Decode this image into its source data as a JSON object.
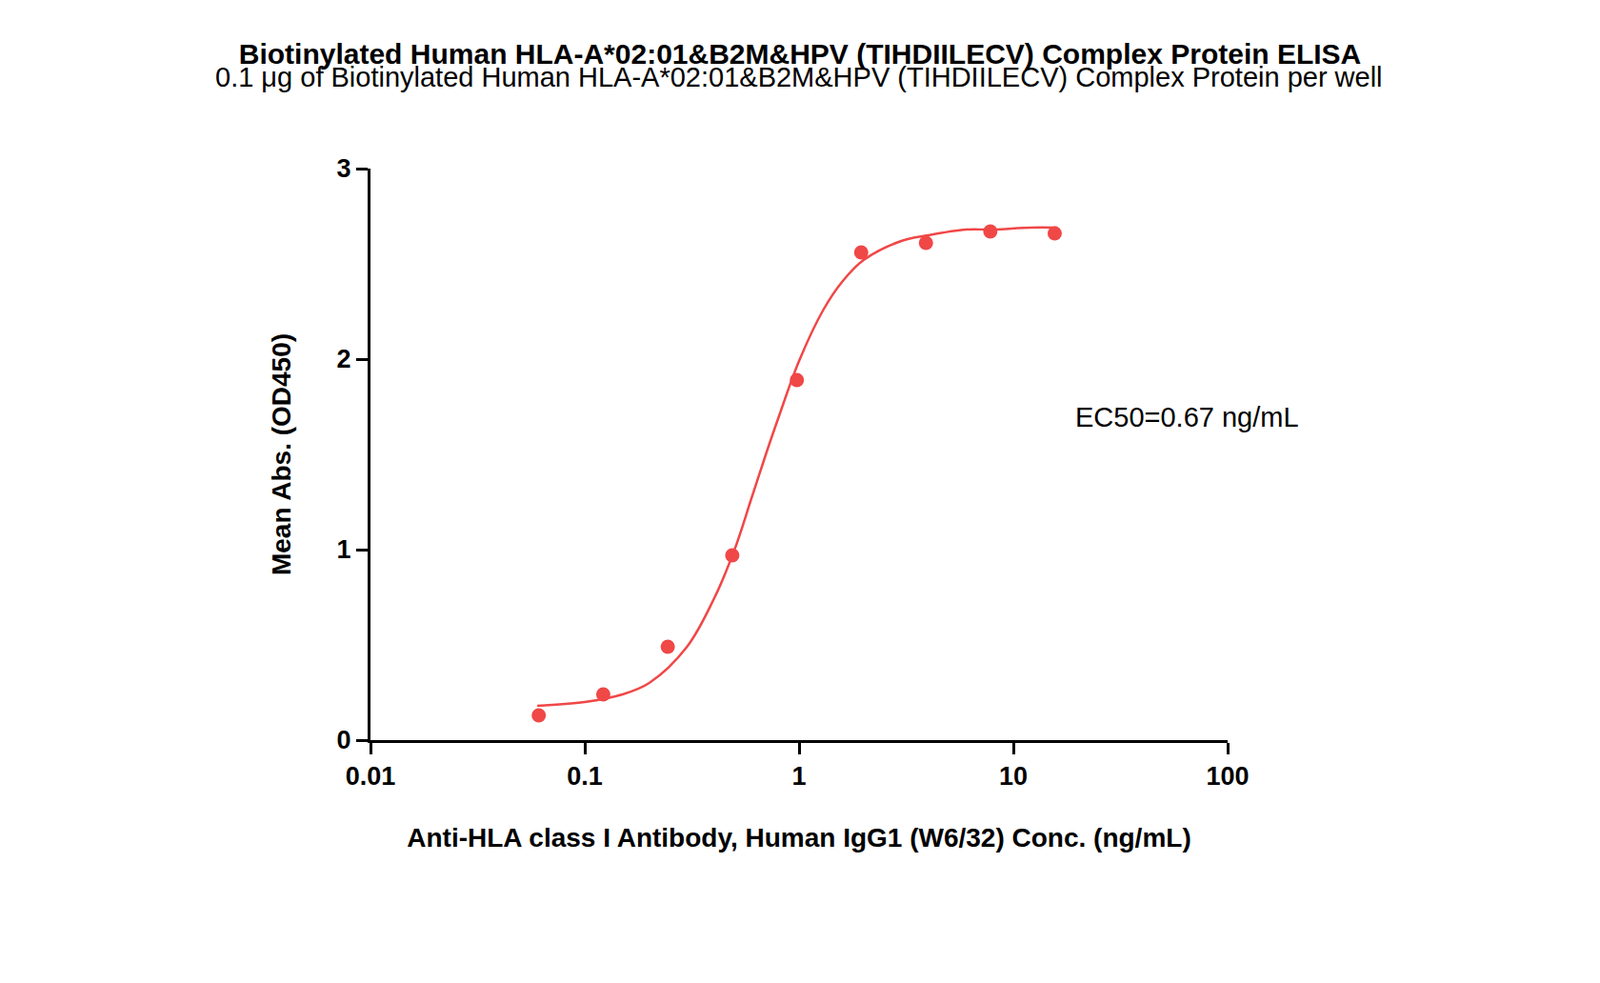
{
  "chart_data": {
    "type": "scatter",
    "title": "Biotinylated Human HLA-A*02:01&B2M&HPV (TIHDIILECV) Complex Protein ELISA",
    "subtitle": "0.1 μg of Biotinylated Human HLA-A*02:01&B2M&HPV (TIHDIILECV) Complex Protein per well",
    "x_label": "Anti-HLA class I Antibody, Human IgG1 (W6/32) Conc. (ng/mL)",
    "y_label": "Mean Abs. (OD450)",
    "annotations": [
      "EC50=0.67 ng/mL"
    ],
    "color": "#f04747",
    "log": "x",
    "grid": false,
    "xlim": [
      0.01,
      100
    ],
    "xticks": [
      0.01,
      0.1,
      1,
      10,
      100
    ],
    "ylim": [
      0,
      3
    ],
    "yticks": [
      0,
      1,
      2,
      3
    ],
    "series": [
      {
        "type": "scatter",
        "marker": "circle",
        "x": [
          0.061,
          0.122,
          0.244,
          0.488,
          0.977,
          1.95,
          3.91,
          7.81,
          15.6
        ],
        "values": [
          0.13,
          0.24,
          0.49,
          0.97,
          1.89,
          2.56,
          2.61,
          2.67,
          2.66
        ]
      },
      {
        "type": "line",
        "line_style": "solid",
        "x": [
          0.06,
          0.1,
          0.15,
          0.2,
          0.3,
          0.4,
          0.5,
          0.6,
          0.7,
          0.8,
          1,
          1.3,
          1.6,
          2,
          3,
          4,
          6,
          8,
          12,
          16
        ],
        "values": [
          0.18,
          0.2,
          0.24,
          0.3,
          0.49,
          0.74,
          1.0,
          1.27,
          1.5,
          1.69,
          1.99,
          2.26,
          2.41,
          2.52,
          2.62,
          2.65,
          2.68,
          2.68,
          2.69,
          2.69
        ]
      }
    ]
  }
}
